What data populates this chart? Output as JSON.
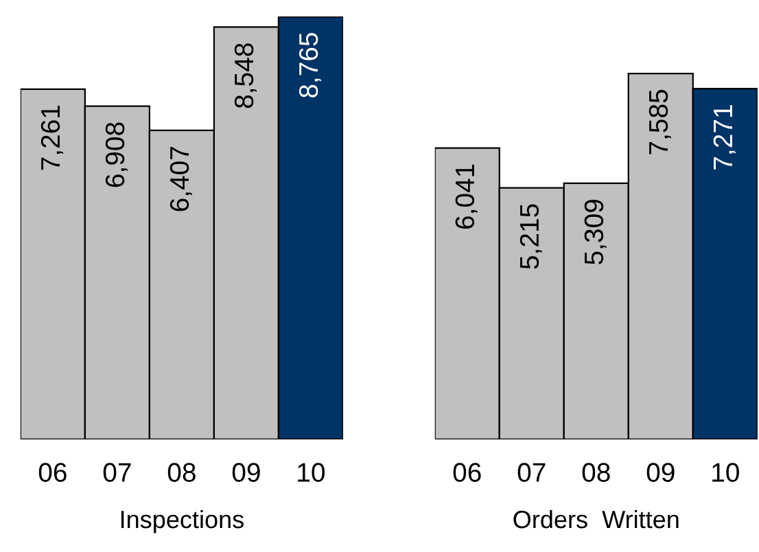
{
  "chart_data": [
    {
      "type": "bar",
      "xlabel": "Inspections",
      "categories": [
        "06",
        "07",
        "08",
        "09",
        "10"
      ],
      "values": [
        7261,
        6908,
        6407,
        8548,
        8765
      ],
      "value_labels": [
        "7,261",
        "6,908",
        "6,407",
        "8,548",
        "8,765"
      ],
      "colors": [
        "#c0c0c0",
        "#c0c0c0",
        "#c0c0c0",
        "#c0c0c0",
        "#003366"
      ]
    },
    {
      "type": "bar",
      "xlabel": "Orders  Written",
      "categories": [
        "06",
        "07",
        "08",
        "09",
        "10"
      ],
      "values": [
        6041,
        5215,
        5309,
        7585,
        7271
      ],
      "value_labels": [
        "6,041",
        "5,215",
        "5,309",
        "7,585",
        "7,271"
      ],
      "colors": [
        "#c0c0c0",
        "#c0c0c0",
        "#c0c0c0",
        "#c0c0c0",
        "#003366"
      ]
    }
  ]
}
